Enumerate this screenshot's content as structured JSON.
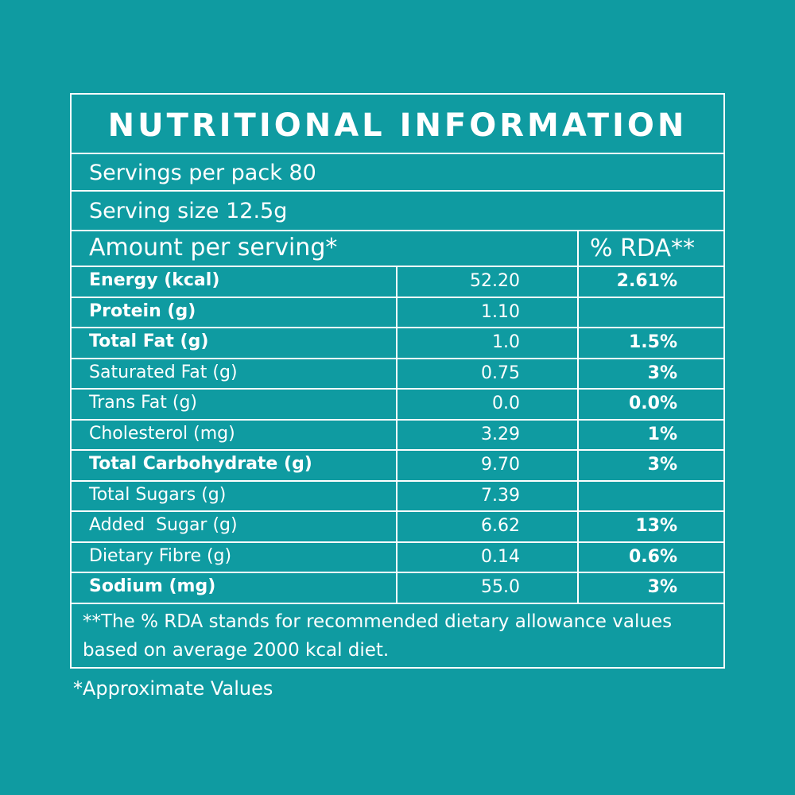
{
  "title": "NUTRITIONAL INFORMATION",
  "servings": "Servings per pack 80",
  "serving_size": "Serving size 12.5g",
  "header": {
    "amount": "Amount per serving*",
    "rda": "% RDA**"
  },
  "rows": [
    {
      "name": "Energy (kcal)",
      "value": "52.20",
      "rda": "2.61%",
      "bold": true
    },
    {
      "name": "Protein (g)",
      "value": "1.10",
      "rda": "",
      "bold": true
    },
    {
      "name": "Total Fat (g)",
      "value": "1.0",
      "rda": "1.5%",
      "bold": true
    },
    {
      "name": "Saturated Fat (g)",
      "value": "0.75",
      "rda": "3%",
      "bold": false
    },
    {
      "name": "Trans Fat (g)",
      "value": "0.0",
      "rda": "0.0%",
      "bold": false
    },
    {
      "name": "Cholesterol (mg)",
      "value": "3.29",
      "rda": "1%",
      "bold": false
    },
    {
      "name": "Total Carbohydrate (g)",
      "value": "9.70",
      "rda": "3%",
      "bold": true
    },
    {
      "name": "Total Sugars (g)",
      "value": "7.39",
      "rda": "",
      "bold": false
    },
    {
      "name": "Added  Sugar (g)",
      "value": "6.62",
      "rda": "13%",
      "bold": false
    },
    {
      "name": "Dietary Fibre (g)",
      "value": "0.14",
      "rda": "0.6%",
      "bold": false
    },
    {
      "name": "Sodium (mg)",
      "value": "55.0",
      "rda": "3%",
      "bold": true
    }
  ],
  "footnote": "**The % RDA stands for recommended dietary allowance values based on average 2000 kcal diet.",
  "approx": "*Approximate Values",
  "colors": {
    "background": "#0f9ba1",
    "foreground": "#ffffff"
  }
}
